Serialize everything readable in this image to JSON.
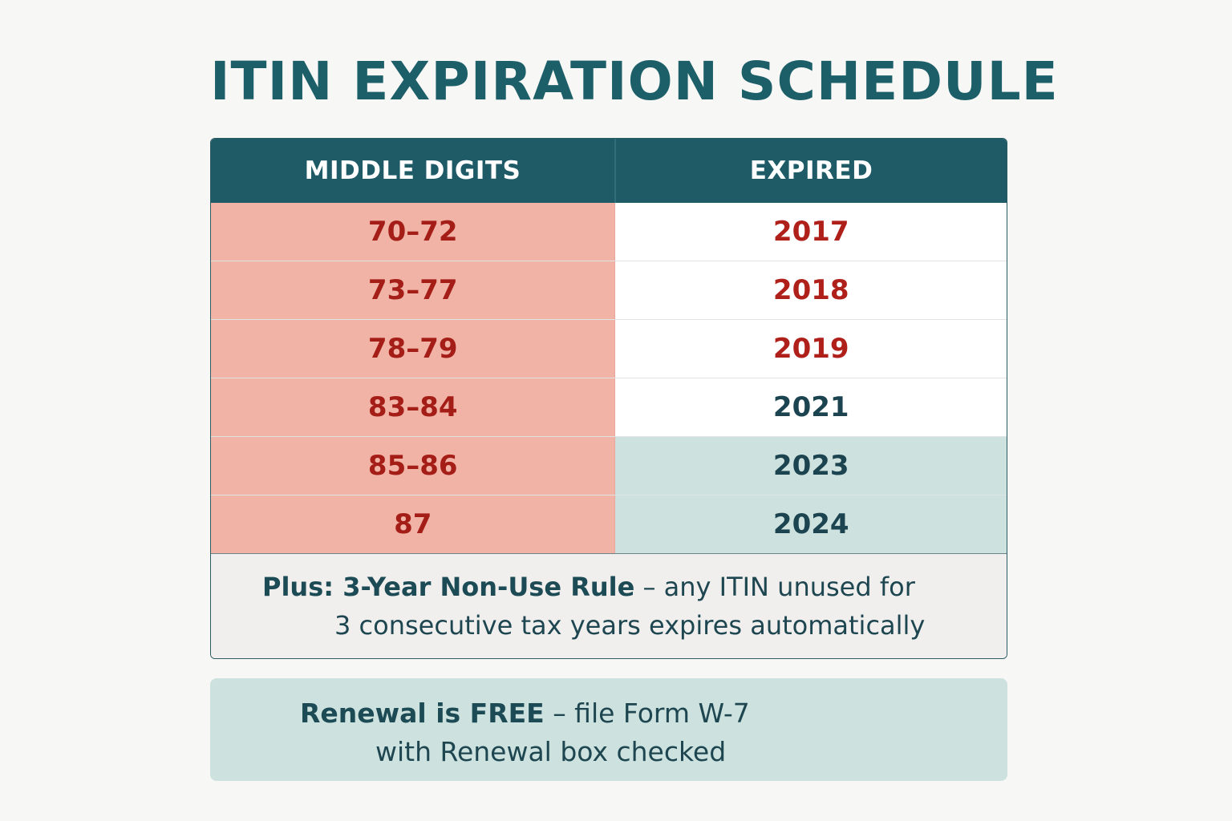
{
  "title": "ITIN EXPIRATION SCHEDULE",
  "table": {
    "headers": [
      "MIDDLE DIGITS",
      "EXPIRED"
    ],
    "rows": [
      {
        "digits": "70–72",
        "year": "2017",
        "status": "past"
      },
      {
        "digits": "73–77",
        "year": "2018",
        "status": "past"
      },
      {
        "digits": "78–79",
        "year": "2019",
        "status": "past"
      },
      {
        "digits": "83–84",
        "year": "2021",
        "status": "neutral"
      },
      {
        "digits": "85–86",
        "year": "2023",
        "status": "recent"
      },
      {
        "digits": "87",
        "year": "2024",
        "status": "recent"
      }
    ]
  },
  "note": {
    "strong": "Plus: 3-Year Non-Use Rule",
    "rest": " – any ITIN unused for",
    "line2": "3 consecutive tax years expires automatically"
  },
  "renewal": {
    "strong": "Renewal is FREE",
    "rest": " – file Form W-7",
    "line2": "with Renewal box checked"
  },
  "colors": {
    "header_bg": "#1e5b67",
    "title": "#1d5f68",
    "digits_bg": "#f0b3a6",
    "digits_text": "#a51d17",
    "past_year_text": "#b0201a",
    "neutral_year_text": "#1c4450",
    "recent_year_bg": "#cde1de",
    "recent_year_text": "#1c4450",
    "renewal_bg": "#cde1de"
  }
}
